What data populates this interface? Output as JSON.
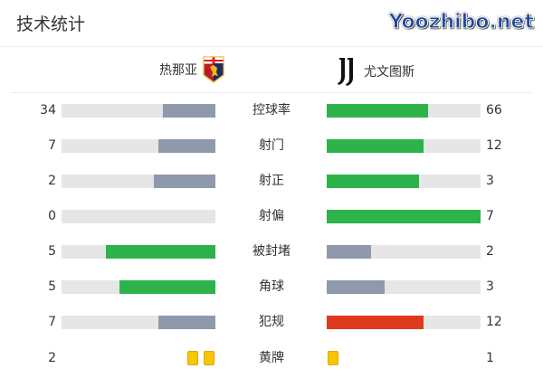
{
  "header": {
    "title": "技术统计"
  },
  "teams": {
    "home": {
      "name": "热那亚",
      "crest": "genoa-crest"
    },
    "away": {
      "name": "尤文图斯",
      "crest": "juventus-crest"
    }
  },
  "colors": {
    "green": "#2db34a",
    "gray": "#8e99ab",
    "red": "#e03a1e",
    "track": "#e6e6e6",
    "yellow": "#f7c600"
  },
  "stats": [
    {
      "label": "控球率",
      "home": "34",
      "away": "66",
      "home_share": 0.34,
      "away_share": 0.66,
      "home_color": "gray",
      "away_color": "green"
    },
    {
      "label": "射门",
      "home": "7",
      "away": "12",
      "home_share": 0.368,
      "away_share": 0.632,
      "home_color": "gray",
      "away_color": "green"
    },
    {
      "label": "射正",
      "home": "2",
      "away": "3",
      "home_share": 0.4,
      "away_share": 0.6,
      "home_color": "gray",
      "away_color": "green"
    },
    {
      "label": "射偏",
      "home": "0",
      "away": "7",
      "home_share": 0,
      "away_share": 1,
      "home_color": "gray",
      "away_color": "green"
    },
    {
      "label": "被封堵",
      "home": "5",
      "away": "2",
      "home_share": 0.714,
      "away_share": 0.286,
      "home_color": "green",
      "away_color": "gray"
    },
    {
      "label": "角球",
      "home": "5",
      "away": "3",
      "home_share": 0.625,
      "away_share": 0.375,
      "home_color": "green",
      "away_color": "gray"
    },
    {
      "label": "犯规",
      "home": "7",
      "away": "12",
      "home_share": 0.368,
      "away_share": 0.632,
      "home_color": "gray",
      "away_color": "red"
    }
  ],
  "yellow_cards": {
    "label": "黄牌",
    "home": "2",
    "away": "1"
  },
  "watermark": "Yoozhibo.net"
}
